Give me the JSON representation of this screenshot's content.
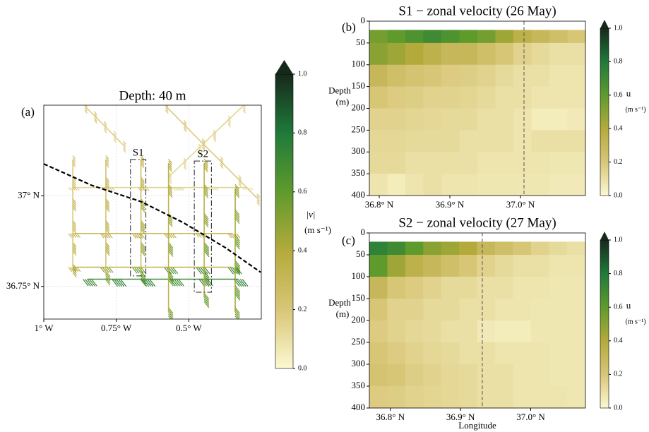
{
  "chart_data": [
    {
      "type": "quiver",
      "panel_label": "(a)",
      "title": "Depth: 40 m",
      "xlim": [
        -1.0,
        -0.25
      ],
      "ylim": [
        36.66,
        37.25
      ],
      "xticks": [
        {
          "value": -1,
          "label": "1° W"
        },
        {
          "value": -0.75,
          "label": "0.75° W"
        },
        {
          "value": -0.5,
          "label": "0.5° W"
        }
      ],
      "yticks": [
        {
          "value": 36.75,
          "label": "36.75° N"
        },
        {
          "value": 37,
          "label": "37° N"
        }
      ],
      "grid": true,
      "colormap": [
        "#fcf8d2",
        "#d8c677",
        "#b4aa3c",
        "#5f9a2c",
        "#1f7a3a",
        "#17291b"
      ],
      "colorbar": {
        "label": "|v|",
        "units": "(m s⁻¹)",
        "lim": [
          0,
          1
        ],
        "ticks": [
          {
            "value": 0,
            "label": "0.0"
          },
          {
            "value": 0.2,
            "label": "0.2"
          },
          {
            "value": 0.4,
            "label": "0.4"
          },
          {
            "value": 0.6,
            "label": "0.6"
          },
          {
            "value": 0.8,
            "label": "0.8"
          },
          {
            "value": 1,
            "label": "1.0"
          }
        ]
      },
      "tracks": [
        {
          "lon": [
            -0.9,
            -0.78,
            -0.66,
            -0.54,
            -0.42,
            -0.3
          ],
          "lat": [
            37.023,
            37.023,
            37.023,
            37.023,
            37.023,
            37.023
          ],
          "speed": [
            0.15,
            0.18,
            0.2,
            0.15,
            0.12,
            0.1
          ]
        },
        {
          "lon": [
            -0.9,
            -0.79,
            -0.68,
            -0.57,
            -0.46,
            -0.35
          ],
          "lat": [
            36.896,
            36.896,
            36.896,
            36.896,
            36.896,
            36.896
          ],
          "speed": [
            0.3,
            0.35,
            0.4,
            0.35,
            0.3,
            0.35
          ]
        },
        {
          "lon": [
            -0.9,
            -0.79,
            -0.68,
            -0.57,
            -0.46,
            -0.35
          ],
          "lat": [
            36.803,
            36.803,
            36.803,
            36.803,
            36.803,
            36.803
          ],
          "speed": [
            0.35,
            0.5,
            0.6,
            0.65,
            0.7,
            0.7
          ]
        },
        {
          "lon": [
            -0.85,
            -0.75,
            -0.65,
            -0.55,
            -0.45,
            -0.33
          ],
          "lat": [
            36.77,
            36.77,
            36.77,
            36.77,
            36.77,
            36.77
          ],
          "speed": [
            0.7,
            0.75,
            0.75,
            0.7,
            0.7,
            0.75
          ]
        },
        {
          "lon": [
            -0.9,
            -0.9,
            -0.9,
            -0.9,
            -0.9,
            -0.9
          ],
          "lat": [
            37.1,
            37.04,
            36.98,
            36.92,
            36.86,
            36.8
          ],
          "speed": [
            0.2,
            0.25,
            0.3,
            0.3,
            0.35,
            0.4
          ]
        },
        {
          "lon": [
            -0.786,
            -0.786,
            -0.786,
            -0.786,
            -0.786,
            -0.786
          ],
          "lat": [
            37.1,
            37.04,
            36.98,
            36.92,
            36.86,
            36.78
          ],
          "speed": [
            0.25,
            0.3,
            0.35,
            0.35,
            0.4,
            0.5
          ]
        },
        {
          "lon": [
            -0.665,
            -0.665,
            -0.665,
            -0.665,
            -0.665,
            -0.665
          ],
          "lat": [
            37.1,
            37.04,
            36.98,
            36.92,
            36.86,
            36.78
          ],
          "speed": [
            0.3,
            0.35,
            0.45,
            0.45,
            0.5,
            0.6
          ]
        },
        {
          "lon": [
            -0.57,
            -0.57,
            -0.57,
            -0.57,
            -0.57,
            -0.57
          ],
          "lat": [
            37.09,
            37.02,
            36.94,
            36.86,
            36.78,
            36.68
          ],
          "speed": [
            0.35,
            0.4,
            0.45,
            0.55,
            0.6,
            0.55
          ]
        },
        {
          "lon": [
            -0.447,
            -0.447,
            -0.447,
            -0.447,
            -0.447,
            -0.447
          ],
          "lat": [
            37.09,
            37.02,
            36.94,
            36.86,
            36.78,
            36.72
          ],
          "speed": [
            0.4,
            0.45,
            0.5,
            0.6,
            0.65,
            0.6
          ]
        },
        {
          "lon": [
            -0.34,
            -0.34,
            -0.34,
            -0.34,
            -0.34,
            -0.34
          ],
          "lat": [
            37.02,
            36.95,
            36.88,
            36.81,
            36.74,
            36.68
          ],
          "speed": [
            0.45,
            0.5,
            0.55,
            0.6,
            0.6,
            0.55
          ]
        },
        {
          "lon": [
            -0.58,
            -0.517,
            -0.454,
            -0.391,
            -0.328,
            -0.265
          ],
          "lat": [
            37.248,
            37.197,
            37.146,
            37.096,
            37.045,
            36.994
          ],
          "speed": [
            0.2,
            0.2,
            0.22,
            0.2,
            0.18,
            0.2
          ]
        },
        {
          "lon": [
            -0.313,
            -0.364,
            -0.415,
            -0.466,
            -0.517,
            -0.568
          ],
          "lat": [
            37.248,
            37.209,
            37.17,
            37.131,
            37.092,
            37.053
          ],
          "speed": [
            0.15,
            0.15,
            0.18,
            0.15,
            0.15,
            0.15
          ]
        },
        {
          "lon": [
            -0.859,
            -0.826,
            -0.792,
            -0.759,
            -0.726
          ],
          "lat": [
            37.248,
            37.221,
            37.194,
            37.167,
            37.14
          ],
          "speed": [
            0.18,
            0.2,
            0.18,
            0.15,
            0.18
          ]
        }
      ],
      "front": {
        "lon": [
          -1.0,
          -0.835,
          -0.665,
          -0.519,
          -0.374,
          -0.252
        ],
        "lat": [
          37.088,
          37.029,
          36.984,
          36.926,
          36.857,
          36.789
        ]
      },
      "boxes": [
        {
          "label": "S1",
          "lon": [
            -0.701,
            -0.648
          ],
          "lat": [
            36.779,
            37.1
          ]
        },
        {
          "label": "S2",
          "lon": [
            -0.481,
            -0.422
          ],
          "lat": [
            36.734,
            37.096
          ]
        }
      ]
    },
    {
      "type": "heatmap",
      "panel_label": "(b)",
      "title": "S1 − zonal velocity (26 May)",
      "ylabel": "Depth",
      "ylabel_units": "(m)",
      "xlim": [
        36.786,
        37.092
      ],
      "ylim": [
        400,
        0
      ],
      "xticks": [
        {
          "value": 36.8,
          "label": "36.8° N"
        },
        {
          "value": 36.9,
          "label": "36.9° N"
        },
        {
          "value": 37,
          "label": "37.0° N"
        }
      ],
      "yticks": [
        0,
        50,
        100,
        150,
        200,
        250,
        300,
        350,
        400
      ],
      "section_line": 37.005,
      "colormap": [
        "#fcf8d2",
        "#d8c677",
        "#b4aa3c",
        "#5f9a2c",
        "#1f7a3a",
        "#17291b"
      ],
      "colorbar": {
        "label": "u",
        "units": "(m s⁻¹)",
        "lim": [
          0,
          1
        ],
        "ticks": [
          {
            "value": 0,
            "label": "0.0"
          },
          {
            "value": 0.2,
            "label": "0.2"
          },
          {
            "value": 0.4,
            "label": "0.4"
          },
          {
            "value": 0.6,
            "label": "0.6"
          },
          {
            "value": 0.8,
            "label": "0.8"
          },
          {
            "value": 1,
            "label": "1.0"
          }
        ]
      },
      "xbins": [
        36.786,
        36.8115,
        36.837,
        36.8625,
        36.888,
        36.9135,
        36.939,
        36.9645,
        36.99,
        37.0155,
        37.041,
        37.0665,
        37.092
      ],
      "ybins": [
        20,
        50,
        100,
        150,
        200,
        250,
        300,
        350,
        400
      ],
      "z": [
        [
          0.55,
          0.6,
          0.65,
          0.7,
          0.65,
          0.6,
          0.55,
          0.45,
          0.35,
          0.3,
          0.25,
          0.2
        ],
        [
          0.5,
          0.45,
          0.4,
          0.35,
          0.3,
          0.3,
          0.25,
          0.2,
          0.15,
          0.12,
          0.1,
          0.1
        ],
        [
          0.3,
          0.25,
          0.22,
          0.2,
          0.18,
          0.17,
          0.15,
          0.12,
          0.1,
          0.1,
          0.08,
          0.08
        ],
        [
          0.2,
          0.18,
          0.17,
          0.15,
          0.15,
          0.14,
          0.12,
          0.1,
          0.1,
          0.08,
          0.08,
          0.08
        ],
        [
          0.15,
          0.15,
          0.14,
          0.13,
          0.12,
          0.12,
          0.1,
          0.1,
          0.08,
          0.05,
          0.05,
          0.06
        ],
        [
          0.13,
          0.13,
          0.12,
          0.12,
          0.12,
          0.1,
          0.1,
          0.1,
          0.08,
          0.1,
          0.1,
          0.1
        ],
        [
          0.12,
          0.12,
          0.1,
          0.1,
          0.1,
          0.1,
          0.08,
          0.08,
          0.08,
          0.08,
          0.07,
          0.07
        ],
        [
          0.08,
          0.05,
          0.08,
          0.1,
          0.08,
          0.08,
          0.07,
          0.07,
          0.07,
          0.07,
          0.06,
          0.06
        ]
      ]
    },
    {
      "type": "heatmap",
      "panel_label": "(c)",
      "title": "S2 − zonal velocity (27 May)",
      "ylabel": "Depth",
      "ylabel_units": "(m)",
      "xlabel": "Longitude",
      "xlim": [
        36.77,
        37.078
      ],
      "ylim": [
        400,
        0
      ],
      "xticks": [
        {
          "value": 36.8,
          "label": "36.8° N"
        },
        {
          "value": 36.9,
          "label": "36.9° N"
        },
        {
          "value": 37,
          "label": "37.0° N"
        }
      ],
      "yticks": [
        0,
        50,
        100,
        150,
        200,
        250,
        300,
        350,
        400
      ],
      "section_line": 36.931,
      "colormap": [
        "#fcf8d2",
        "#d8c677",
        "#b4aa3c",
        "#5f9a2c",
        "#1f7a3a",
        "#17291b"
      ],
      "colorbar": {
        "label": "u",
        "units": "(m s⁻¹)",
        "lim": [
          0,
          1
        ],
        "ticks": [
          {
            "value": 0,
            "label": "0.0"
          },
          {
            "value": 0.2,
            "label": "0.2"
          },
          {
            "value": 0.4,
            "label": "0.4"
          },
          {
            "value": 0.6,
            "label": "0.6"
          },
          {
            "value": 0.8,
            "label": "0.8"
          },
          {
            "value": 1,
            "label": "1.0"
          }
        ]
      },
      "xbins": [
        36.77,
        36.7956,
        36.8212,
        36.8468,
        36.8724,
        36.898,
        36.9236,
        36.9492,
        36.9748,
        37.0004,
        37.026,
        37.0516,
        37.0772
      ],
      "ybins": [
        20,
        50,
        100,
        150,
        200,
        250,
        300,
        350,
        400
      ],
      "z": [
        [
          0.75,
          0.7,
          0.6,
          0.5,
          0.45,
          0.4,
          0.3,
          0.25,
          0.2,
          0.15,
          0.12,
          0.1
        ],
        [
          0.6,
          0.45,
          0.35,
          0.3,
          0.25,
          0.2,
          0.15,
          0.12,
          0.1,
          0.1,
          0.08,
          0.08
        ],
        [
          0.3,
          0.2,
          0.18,
          0.15,
          0.12,
          0.12,
          0.1,
          0.1,
          0.08,
          0.08,
          0.07,
          0.07
        ],
        [
          0.2,
          0.15,
          0.15,
          0.12,
          0.12,
          0.1,
          0.1,
          0.08,
          0.08,
          0.07,
          0.07,
          0.07
        ],
        [
          0.18,
          0.15,
          0.13,
          0.12,
          0.1,
          0.1,
          0.06,
          0.05,
          0.05,
          0.07,
          0.07,
          0.07
        ],
        [
          0.2,
          0.18,
          0.15,
          0.13,
          0.12,
          0.1,
          0.1,
          0.08,
          0.08,
          0.08,
          0.07,
          0.07
        ],
        [
          0.22,
          0.2,
          0.17,
          0.15,
          0.13,
          0.12,
          0.1,
          0.1,
          0.08,
          0.08,
          0.07,
          0.07
        ],
        [
          0.18,
          0.17,
          0.15,
          0.14,
          0.13,
          0.12,
          0.1,
          0.1,
          0.08,
          0.08,
          0.08,
          0.07
        ]
      ]
    }
  ]
}
